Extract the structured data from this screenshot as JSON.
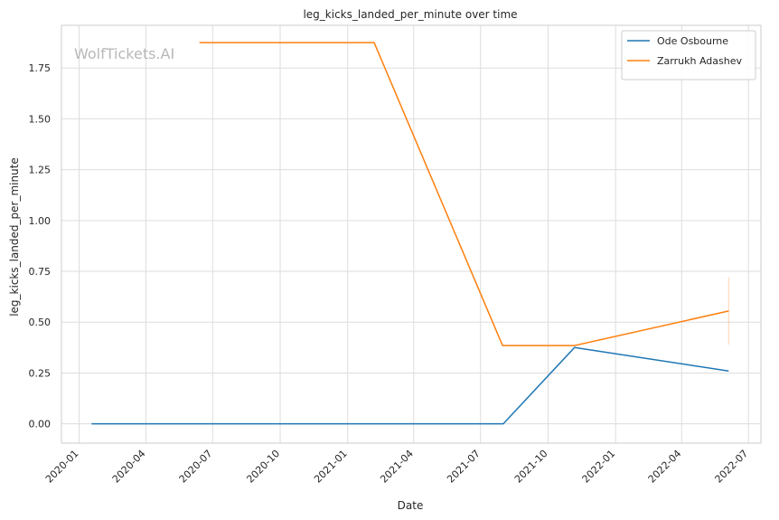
{
  "chart_data": {
    "type": "line",
    "title": "leg_kicks_landed_per_minute over time",
    "xlabel": "Date",
    "ylabel": "leg_kicks_landed_per_minute",
    "watermark": "WolfTickets.AI",
    "xlim": [
      "2019-12-08",
      "2022-07-18"
    ],
    "ylim": [
      -0.095,
      1.96
    ],
    "xticks": [
      "2020-01",
      "2020-04",
      "2020-07",
      "2020-10",
      "2021-01",
      "2021-04",
      "2021-07",
      "2021-10",
      "2022-01",
      "2022-04",
      "2022-07"
    ],
    "yticks": [
      "0.00",
      "0.25",
      "0.50",
      "0.75",
      "1.00",
      "1.25",
      "1.50",
      "1.75"
    ],
    "grid": true,
    "legend_position": "top-right",
    "series": [
      {
        "name": "Ode Osbourne",
        "color": "#1f77b4",
        "points": [
          {
            "x": "2020-01-18",
            "y": 0.0
          },
          {
            "x": "2021-08-01",
            "y": 0.0
          },
          {
            "x": "2021-11-06",
            "y": 0.375
          },
          {
            "x": "2022-06-04",
            "y": 0.26
          }
        ]
      },
      {
        "name": "Zarrukh Adashev",
        "color": "#ff7f0e",
        "points": [
          {
            "x": "2020-06-13",
            "y": 1.875
          },
          {
            "x": "2021-02-06",
            "y": 1.875
          },
          {
            "x": "2021-07-31",
            "y": 0.385
          },
          {
            "x": "2021-11-06",
            "y": 0.385
          },
          {
            "x": "2022-06-04",
            "y": 0.555
          }
        ],
        "error_bar": {
          "x": "2022-06-04",
          "low": 0.39,
          "high": 0.72
        }
      }
    ]
  }
}
